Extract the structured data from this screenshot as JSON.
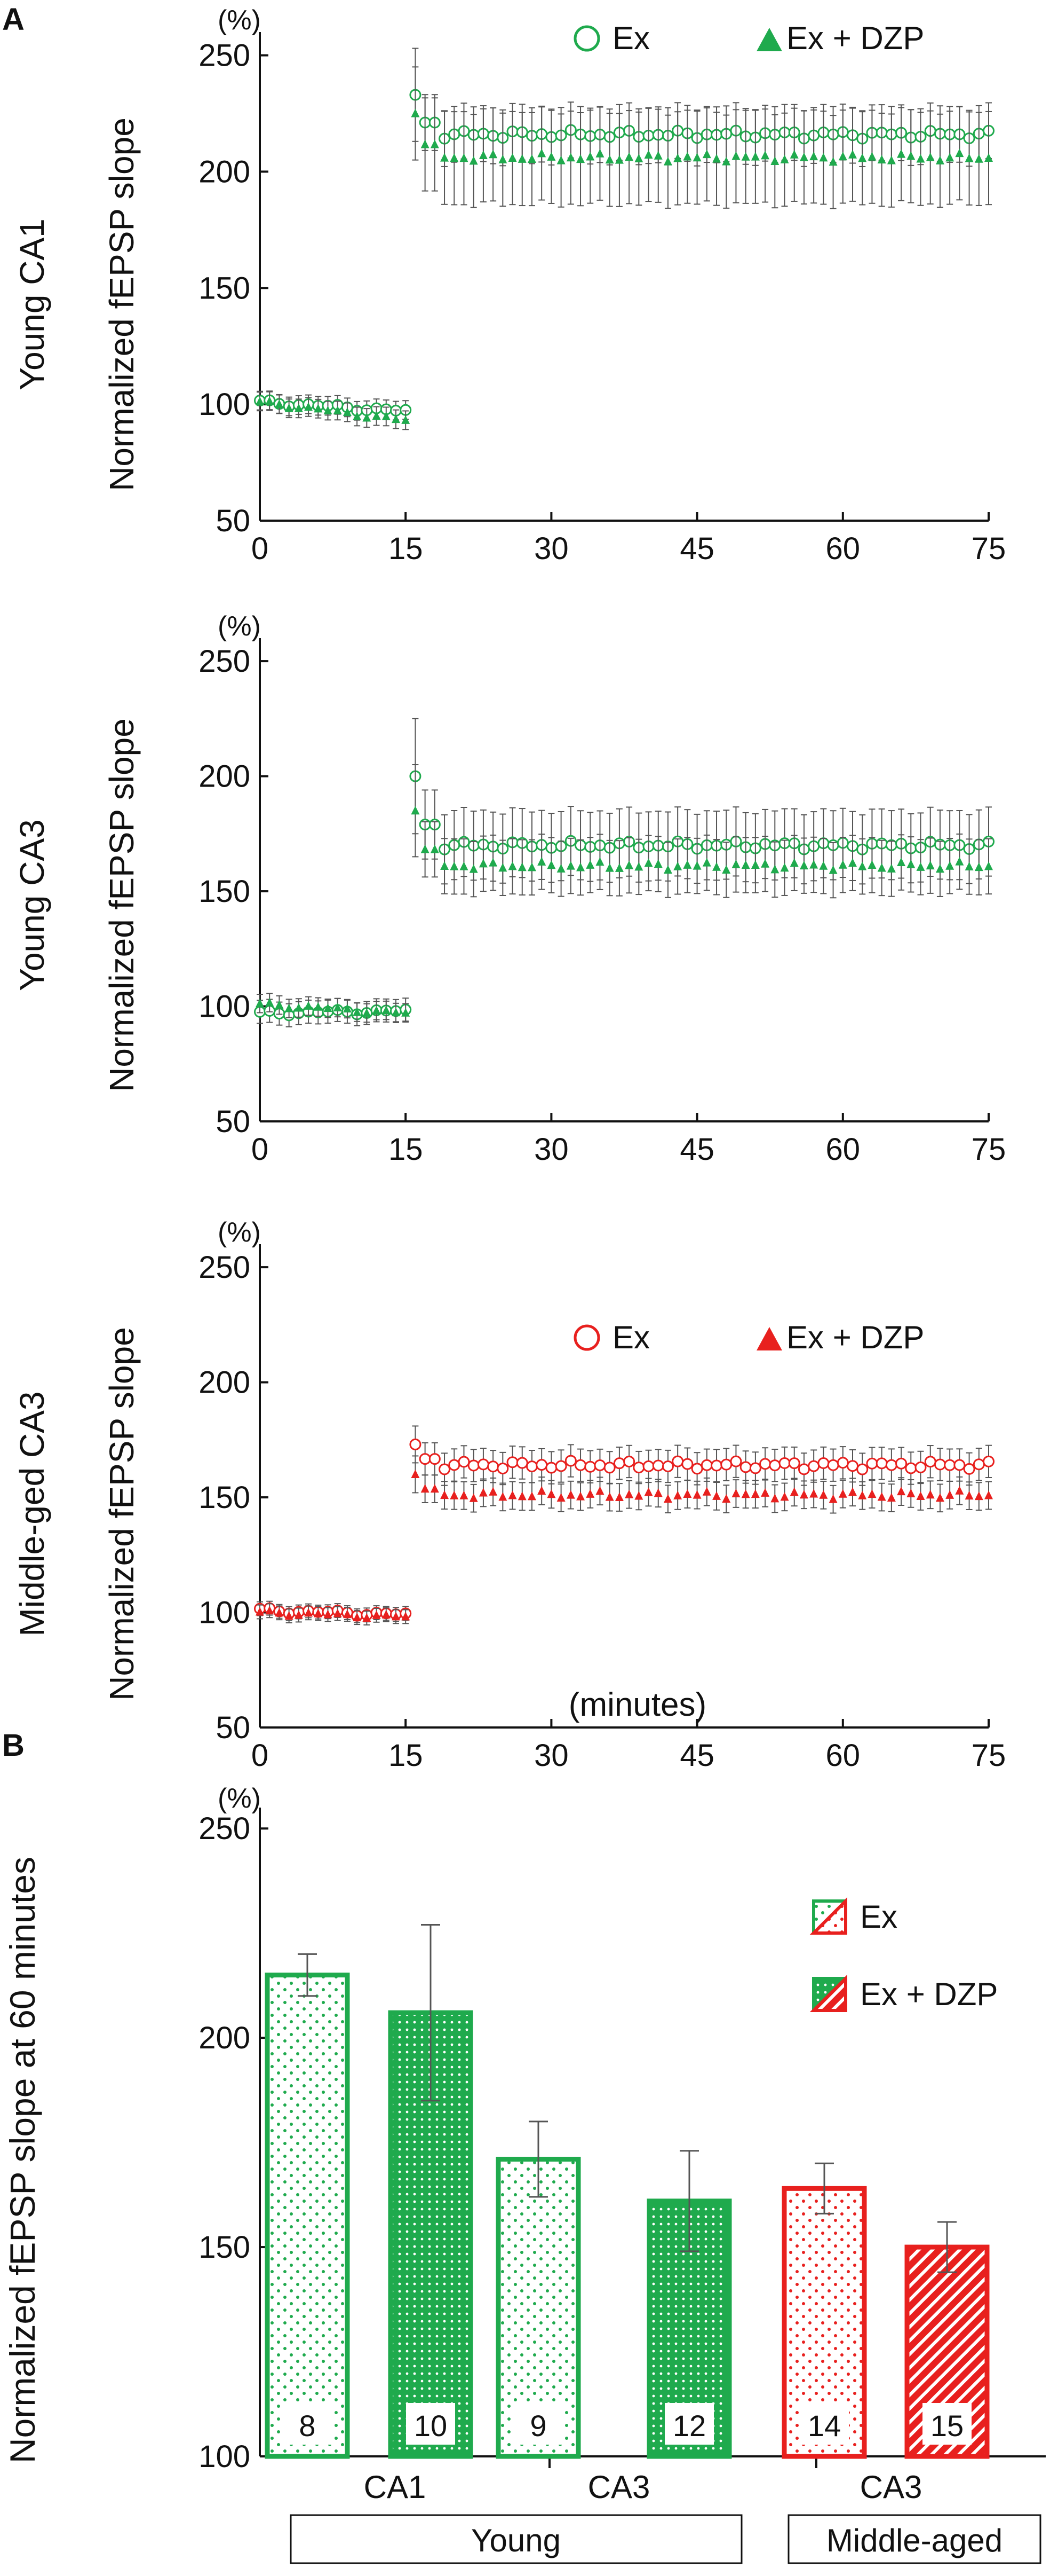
{
  "colors": {
    "green": "#1faa4d",
    "red": "#e8201e",
    "axis": "#111111",
    "error_bar": "#555555",
    "bar_fill": "#ffffff"
  },
  "panel_labels": {
    "a": "A",
    "b": "B"
  },
  "chart_data": [
    {
      "type": "line",
      "title": "",
      "row_label": "Young CA1",
      "ylabel": "Normalized fEPSP slope",
      "y_unit": "(%)",
      "xlabel": "",
      "xlim": [
        0,
        75
      ],
      "ylim": [
        50,
        260
      ],
      "x_ticks": [
        0,
        15,
        30,
        45,
        60,
        75
      ],
      "y_ticks": [
        50,
        100,
        150,
        200,
        250
      ],
      "legend": {
        "placement": "top-right",
        "show": true
      },
      "color": "#1faa4d",
      "series": [
        {
          "name": "Ex",
          "marker": "open-circle",
          "baseline": {
            "x_start": 0,
            "x_end": 15,
            "start": 101,
            "end": 97,
            "err": 4
          },
          "post": {
            "x_start": 16,
            "x_end": 75,
            "first": 233,
            "first_err": 20,
            "level": 216,
            "err": 12
          }
        },
        {
          "name": "Ex + DZP",
          "marker": "filled-triangle",
          "baseline": {
            "x_start": 0,
            "x_end": 15,
            "start": 101,
            "end": 93,
            "err": 4
          },
          "post": {
            "x_start": 16,
            "x_end": 75,
            "first": 225,
            "first_err": 20,
            "level": 206,
            "err": 20
          }
        }
      ]
    },
    {
      "type": "line",
      "title": "",
      "row_label": "Young CA3",
      "ylabel": "Normalized fEPSP slope",
      "y_unit": "(%)",
      "xlabel": "",
      "xlim": [
        0,
        75
      ],
      "ylim": [
        50,
        260
      ],
      "x_ticks": [
        0,
        15,
        30,
        45,
        60,
        75
      ],
      "y_ticks": [
        50,
        100,
        150,
        200,
        250
      ],
      "legend": {
        "placement": "none",
        "show": false
      },
      "color": "#1faa4d",
      "series": [
        {
          "name": "Ex",
          "marker": "open-circle",
          "baseline": {
            "x_start": 0,
            "x_end": 15,
            "start": 97,
            "end": 98,
            "err": 5
          },
          "post": {
            "x_start": 16,
            "x_end": 75,
            "first": 200,
            "first_err": 25,
            "level": 170,
            "err": 15
          }
        },
        {
          "name": "Ex + DZP",
          "marker": "filled-triangle",
          "baseline": {
            "x_start": 0,
            "x_end": 15,
            "start": 101,
            "end": 97,
            "err": 4
          },
          "post": {
            "x_start": 16,
            "x_end": 75,
            "first": 185,
            "first_err": 20,
            "level": 161,
            "err": 12
          }
        }
      ]
    },
    {
      "type": "line",
      "title": "",
      "row_label": "Middle-ged  CA3",
      "ylabel": "Normalized fEPSP slope",
      "y_unit": "(%)",
      "xlabel": "(minutes)",
      "xlim": [
        0,
        75
      ],
      "ylim": [
        50,
        260
      ],
      "x_ticks": [
        0,
        15,
        30,
        45,
        60,
        75
      ],
      "y_ticks": [
        50,
        100,
        150,
        200,
        250
      ],
      "legend": {
        "placement": "top-right",
        "show": true
      },
      "color": "#e8201e",
      "series": [
        {
          "name": "Ex",
          "marker": "open-circle",
          "baseline": {
            "x_start": 0,
            "x_end": 15,
            "start": 101,
            "end": 99,
            "err": 3
          },
          "post": {
            "x_start": 16,
            "x_end": 75,
            "first": 173,
            "first_err": 8,
            "level": 164,
            "err": 7
          }
        },
        {
          "name": "Ex + DZP",
          "marker": "filled-triangle",
          "baseline": {
            "x_start": 0,
            "x_end": 15,
            "start": 100,
            "end": 98,
            "err": 3
          },
          "post": {
            "x_start": 16,
            "x_end": 75,
            "first": 160,
            "first_err": 8,
            "level": 151,
            "err": 6
          }
        }
      ]
    },
    {
      "type": "bar",
      "title": "",
      "ylabel": "Normalized fEPSP slope at 60 minutes",
      "y_unit": "(%)",
      "ylim": [
        100,
        255
      ],
      "y_ticks": [
        100,
        150,
        200,
        250
      ],
      "categories": [
        "CA1",
        "CA3",
        "CA3"
      ],
      "groups": [
        "Young",
        "Middle-aged"
      ],
      "legend": {
        "placement": "top-right",
        "entries": [
          "Ex",
          "Ex + DZP"
        ]
      },
      "bars": [
        {
          "category": "CA1",
          "group": "Young",
          "series": "Ex",
          "value": 215,
          "err": 5,
          "n": "8",
          "color": "#1faa4d",
          "pattern": "dots-sparse"
        },
        {
          "category": "CA1",
          "group": "Young",
          "series": "Ex + DZP",
          "value": 206,
          "err": 21,
          "n": "10",
          "color": "#1faa4d",
          "pattern": "dots-dense"
        },
        {
          "category": "CA3",
          "group": "Young",
          "series": "Ex",
          "value": 171,
          "err": 9,
          "n": "9",
          "color": "#1faa4d",
          "pattern": "dots-sparse"
        },
        {
          "category": "CA3",
          "group": "Young",
          "series": "Ex + DZP",
          "value": 161,
          "err": 12,
          "n": "12",
          "color": "#1faa4d",
          "pattern": "dots-dense"
        },
        {
          "category": "CA3",
          "group": "Middle-aged",
          "series": "Ex",
          "value": 164,
          "err": 6,
          "n": "14",
          "color": "#e8201e",
          "pattern": "dots-sparse"
        },
        {
          "category": "CA3",
          "group": "Middle-aged",
          "series": "Ex + DZP",
          "value": 150,
          "err": 6,
          "n": "15",
          "color": "#e8201e",
          "pattern": "stripes"
        }
      ]
    }
  ]
}
